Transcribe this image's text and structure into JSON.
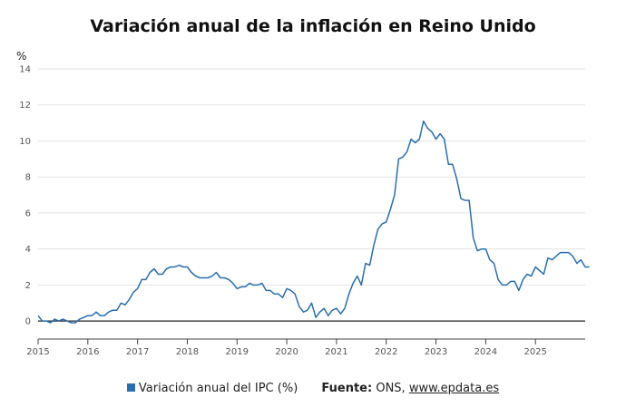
{
  "chart_data": {
    "type": "line",
    "title": "Variación anual de la inflación en Reino Unido",
    "ylabel": "%",
    "xlabel": "",
    "ylim": [
      -1,
      14
    ],
    "yticks": [
      0,
      2,
      4,
      6,
      8,
      10,
      12,
      14
    ],
    "x_tick_labels": [
      "2015",
      "2016",
      "2017",
      "2018",
      "2019",
      "2020",
      "2021",
      "2022",
      "2023",
      "2024",
      "2025"
    ],
    "x_start": "2015-01",
    "x_end": "2026-01",
    "grid": true,
    "legend_position": "bottom",
    "series": [
      {
        "name": "Variación anual del IPC (%)",
        "color": "#2a6ead",
        "points": [
          [
            "2015-01",
            0.3
          ],
          [
            "2015-02",
            0.0
          ],
          [
            "2015-03",
            0.0
          ],
          [
            "2015-04",
            -0.1
          ],
          [
            "2015-05",
            0.1
          ],
          [
            "2015-06",
            0.0
          ],
          [
            "2015-07",
            0.1
          ],
          [
            "2015-08",
            0.0
          ],
          [
            "2015-09",
            -0.1
          ],
          [
            "2015-10",
            -0.1
          ],
          [
            "2015-11",
            0.1
          ],
          [
            "2015-12",
            0.2
          ],
          [
            "2016-01",
            0.3
          ],
          [
            "2016-02",
            0.3
          ],
          [
            "2016-03",
            0.5
          ],
          [
            "2016-04",
            0.3
          ],
          [
            "2016-05",
            0.3
          ],
          [
            "2016-06",
            0.5
          ],
          [
            "2016-07",
            0.6
          ],
          [
            "2016-08",
            0.6
          ],
          [
            "2016-09",
            1.0
          ],
          [
            "2016-10",
            0.9
          ],
          [
            "2016-11",
            1.2
          ],
          [
            "2016-12",
            1.6
          ],
          [
            "2017-01",
            1.8
          ],
          [
            "2017-02",
            2.3
          ],
          [
            "2017-03",
            2.3
          ],
          [
            "2017-04",
            2.7
          ],
          [
            "2017-05",
            2.9
          ],
          [
            "2017-06",
            2.6
          ],
          [
            "2017-07",
            2.6
          ],
          [
            "2017-08",
            2.9
          ],
          [
            "2017-09",
            3.0
          ],
          [
            "2017-10",
            3.0
          ],
          [
            "2017-11",
            3.1
          ],
          [
            "2017-12",
            3.0
          ],
          [
            "2018-01",
            3.0
          ],
          [
            "2018-02",
            2.7
          ],
          [
            "2018-03",
            2.5
          ],
          [
            "2018-04",
            2.4
          ],
          [
            "2018-05",
            2.4
          ],
          [
            "2018-06",
            2.4
          ],
          [
            "2018-07",
            2.5
          ],
          [
            "2018-08",
            2.7
          ],
          [
            "2018-09",
            2.4
          ],
          [
            "2018-10",
            2.4
          ],
          [
            "2018-11",
            2.3
          ],
          [
            "2018-12",
            2.1
          ],
          [
            "2019-01",
            1.8
          ],
          [
            "2019-02",
            1.9
          ],
          [
            "2019-03",
            1.9
          ],
          [
            "2019-04",
            2.1
          ],
          [
            "2019-05",
            2.0
          ],
          [
            "2019-06",
            2.0
          ],
          [
            "2019-07",
            2.1
          ],
          [
            "2019-08",
            1.7
          ],
          [
            "2019-09",
            1.7
          ],
          [
            "2019-10",
            1.5
          ],
          [
            "2019-11",
            1.5
          ],
          [
            "2019-12",
            1.3
          ],
          [
            "2020-01",
            1.8
          ],
          [
            "2020-02",
            1.7
          ],
          [
            "2020-03",
            1.5
          ],
          [
            "2020-04",
            0.8
          ],
          [
            "2020-05",
            0.5
          ],
          [
            "2020-06",
            0.6
          ],
          [
            "2020-07",
            1.0
          ],
          [
            "2020-08",
            0.2
          ],
          [
            "2020-09",
            0.5
          ],
          [
            "2020-10",
            0.7
          ],
          [
            "2020-11",
            0.3
          ],
          [
            "2020-12",
            0.6
          ],
          [
            "2021-01",
            0.7
          ],
          [
            "2021-02",
            0.4
          ],
          [
            "2021-03",
            0.7
          ],
          [
            "2021-04",
            1.5
          ],
          [
            "2021-05",
            2.1
          ],
          [
            "2021-06",
            2.5
          ],
          [
            "2021-07",
            2.0
          ],
          [
            "2021-08",
            3.2
          ],
          [
            "2021-09",
            3.1
          ],
          [
            "2021-10",
            4.2
          ],
          [
            "2021-11",
            5.1
          ],
          [
            "2021-12",
            5.4
          ],
          [
            "2022-01",
            5.5
          ],
          [
            "2022-02",
            6.2
          ],
          [
            "2022-03",
            7.0
          ],
          [
            "2022-04",
            9.0
          ],
          [
            "2022-05",
            9.1
          ],
          [
            "2022-06",
            9.4
          ],
          [
            "2022-07",
            10.1
          ],
          [
            "2022-08",
            9.9
          ],
          [
            "2022-09",
            10.1
          ],
          [
            "2022-10",
            11.1
          ],
          [
            "2022-11",
            10.7
          ],
          [
            "2022-12",
            10.5
          ],
          [
            "2023-01",
            10.1
          ],
          [
            "2023-02",
            10.4
          ],
          [
            "2023-03",
            10.1
          ],
          [
            "2023-04",
            8.7
          ],
          [
            "2023-05",
            8.7
          ],
          [
            "2023-06",
            7.9
          ],
          [
            "2023-07",
            6.8
          ],
          [
            "2023-08",
            6.7
          ],
          [
            "2023-09",
            6.7
          ],
          [
            "2023-10",
            4.6
          ],
          [
            "2023-11",
            3.9
          ],
          [
            "2023-12",
            4.0
          ],
          [
            "2024-01",
            4.0
          ],
          [
            "2024-02",
            3.4
          ],
          [
            "2024-03",
            3.2
          ],
          [
            "2024-04",
            2.3
          ],
          [
            "2024-05",
            2.0
          ],
          [
            "2024-06",
            2.0
          ],
          [
            "2024-07",
            2.2
          ],
          [
            "2024-08",
            2.2
          ],
          [
            "2024-09",
            1.7
          ],
          [
            "2024-10",
            2.3
          ],
          [
            "2024-11",
            2.6
          ],
          [
            "2024-12",
            2.5
          ],
          [
            "2025-01",
            3.0
          ],
          [
            "2025-02",
            2.8
          ],
          [
            "2025-03",
            2.6
          ],
          [
            "2025-04",
            3.5
          ],
          [
            "2025-05",
            3.4
          ],
          [
            "2025-06",
            3.6
          ],
          [
            "2025-07",
            3.8
          ],
          [
            "2025-08",
            3.8
          ],
          [
            "2025-09",
            3.8
          ],
          [
            "2025-10",
            3.6
          ],
          [
            "2025-11",
            3.2
          ],
          [
            "2025-12",
            3.4
          ],
          [
            "2026-01",
            3.0
          ],
          [
            "2026-02",
            3.0
          ]
        ]
      }
    ]
  },
  "legend": {
    "series_label": "Variación anual del IPC (%)",
    "source_label": "Fuente:",
    "source_text": "ONS,",
    "source_link": "www.epdata.es"
  }
}
